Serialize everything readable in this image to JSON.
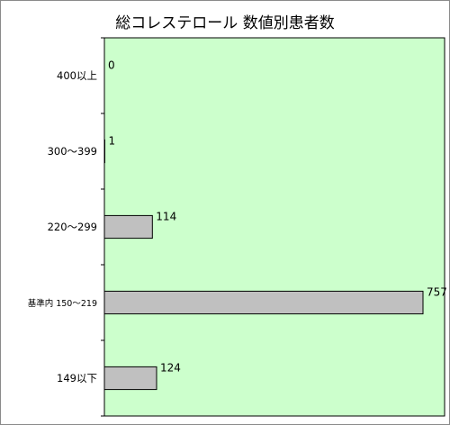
{
  "chart_data": {
    "type": "bar",
    "orientation": "horizontal",
    "title": "総コレステロール 数値別患者数",
    "categories": [
      "400以上",
      "300～399",
      "220～299",
      "基準内 150～219",
      "149以下"
    ],
    "values": [
      0,
      1,
      114,
      757,
      124
    ],
    "data_labels": [
      "0",
      "1",
      "114",
      "757",
      "124"
    ],
    "xlim": [
      0,
      757
    ],
    "grid": false,
    "legend": "none"
  },
  "colors": {
    "plot_background": "#ccffcc",
    "bar_fill": "#c0c0c0",
    "bar_stroke": "#000000"
  }
}
